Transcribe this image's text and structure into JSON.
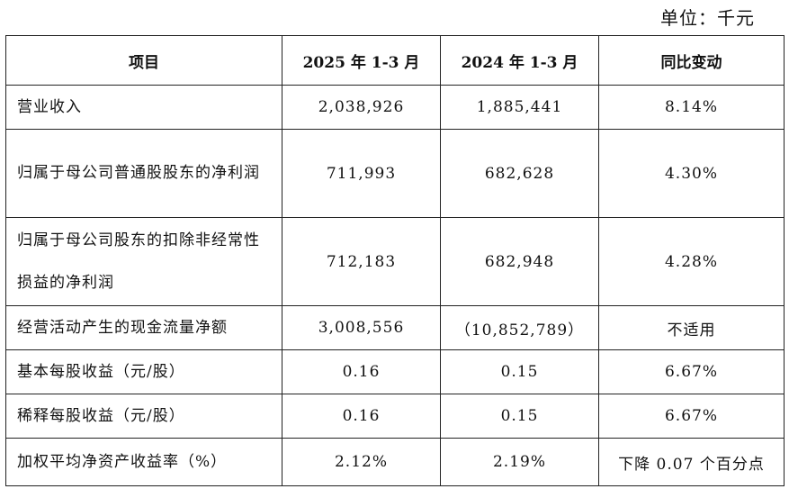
{
  "unit_label": "单位：千元",
  "headers": {
    "item": "项目",
    "col2025": "2025 年 1-3 月",
    "col2024": "2024 年 1-3 月",
    "change": "同比变动"
  },
  "rows": [
    {
      "item": "营业收入",
      "v2025": "2,038,926",
      "v2024": "1,885,441",
      "change": "8.14%"
    },
    {
      "item": "归属于母公司普通股股东的净利润",
      "v2025": "711,993",
      "v2024": "682,628",
      "change": "4.30%"
    },
    {
      "item": "归属于母公司股东的扣除非经常性损益的净利润",
      "v2025": "712,183",
      "v2024": "682,948",
      "change": "4.28%"
    },
    {
      "item": "经营活动产生的现金流量净额",
      "v2025": "3,008,556",
      "v2024": "（10,852,789）",
      "change": "不适用"
    },
    {
      "item": "基本每股收益（元/股）",
      "v2025": "0.16",
      "v2024": "0.15",
      "change": "6.67%"
    },
    {
      "item": "稀释每股收益（元/股）",
      "v2025": "0.16",
      "v2024": "0.15",
      "change": "6.67%"
    },
    {
      "item": "加权平均净资产收益率（%）",
      "v2025": "2.12%",
      "v2024": "2.19%",
      "change": "下降 0.07 个百分点"
    }
  ]
}
